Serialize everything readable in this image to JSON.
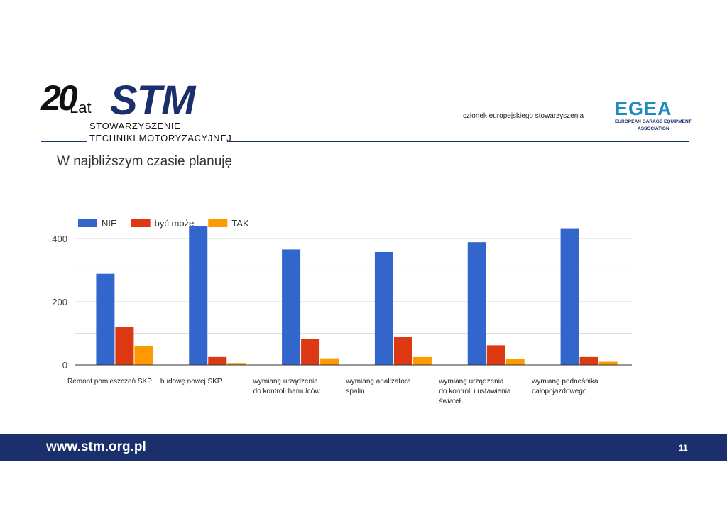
{
  "header": {
    "logo_number": "20",
    "logo_lat": "Lat",
    "logo_mark": "STM",
    "org_line1": "STOWARZYSZENIE",
    "org_line2": "TECHNIKI MOTORYZACYJNEJ",
    "member_text": "członek europejskiego stowarzyszenia",
    "egea_mark": "EGEA",
    "egea_sub1": "EUROPEAN GARAGE EQUIPMENT",
    "egea_sub2": "ASSOCIATION"
  },
  "slide": {
    "title": "W najbliższym czasie planuję"
  },
  "chart_data": {
    "type": "bar",
    "categories": [
      [
        "Remont pomieszczeń SKP"
      ],
      [
        "budowę nowej SKP"
      ],
      [
        "wymianę urządzenia",
        "do kontroli hamulców"
      ],
      [
        "wymianę analizatora",
        "spalin"
      ],
      [
        "wymianę urządzenia",
        "do kontroli i ustawienia",
        "świateł"
      ],
      [
        "wymianę podnośnika",
        "całopojazdowego"
      ]
    ],
    "series": [
      {
        "name": "NIE",
        "color": "#3366cc",
        "values": [
          288,
          440,
          365,
          357,
          388,
          432
        ]
      },
      {
        "name": "być może",
        "color": "#dc3912",
        "values": [
          121,
          25,
          82,
          88,
          62,
          25
        ]
      },
      {
        "name": "TAK",
        "color": "#ff9900",
        "values": [
          59,
          4,
          21,
          25,
          20,
          10
        ]
      }
    ],
    "ylim": [
      0,
      440
    ],
    "yticks": [
      0,
      200,
      400
    ],
    "grid": true,
    "legend_position": "top-left"
  },
  "footer": {
    "url": "www.stm.org.pl",
    "page_number": "11"
  }
}
